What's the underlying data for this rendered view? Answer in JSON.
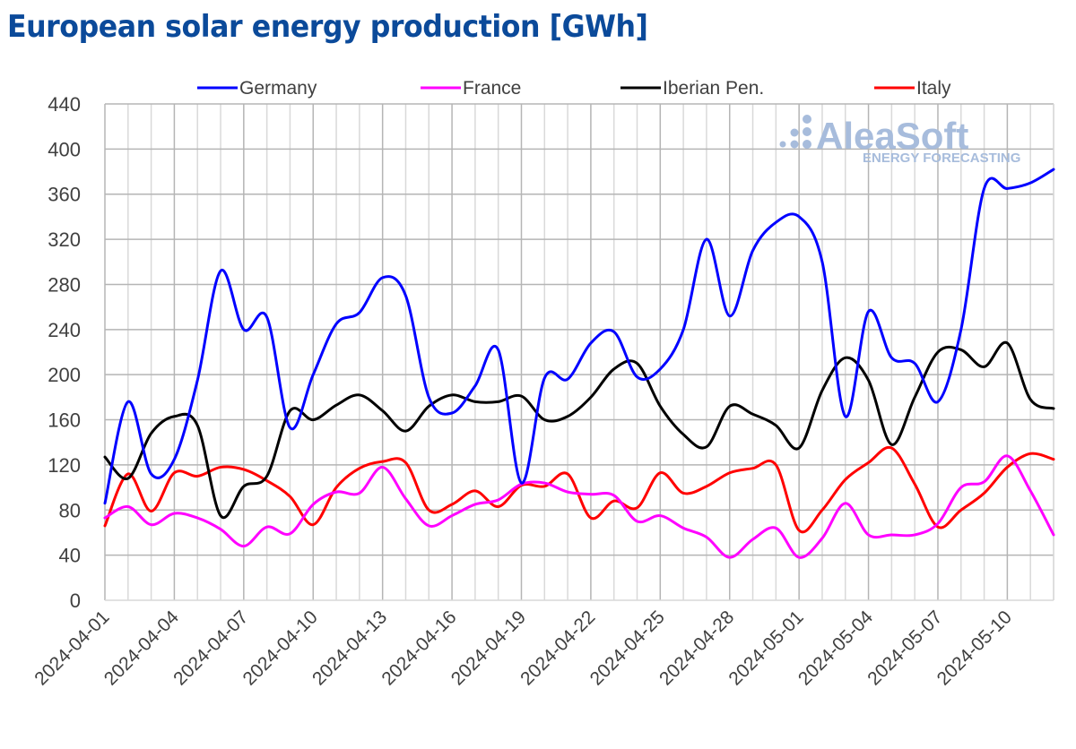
{
  "chart_data": {
    "type": "line",
    "title": "European solar energy production [GWh]",
    "xlabel": "",
    "ylabel": "",
    "ylim": [
      0,
      440
    ],
    "y_ticks": [
      "0",
      "40",
      "80",
      "120",
      "160",
      "200",
      "240",
      "280",
      "320",
      "360",
      "400",
      "440"
    ],
    "y_tick_values": [
      0,
      40,
      80,
      120,
      160,
      200,
      240,
      280,
      320,
      360,
      400,
      440
    ],
    "grid": true,
    "legend_position": "top",
    "x": [
      "2024-04-01",
      "2024-04-02",
      "2024-04-03",
      "2024-04-04",
      "2024-04-05",
      "2024-04-06",
      "2024-04-07",
      "2024-04-08",
      "2024-04-09",
      "2024-04-10",
      "2024-04-11",
      "2024-04-12",
      "2024-04-13",
      "2024-04-14",
      "2024-04-15",
      "2024-04-16",
      "2024-04-17",
      "2024-04-18",
      "2024-04-19",
      "2024-04-20",
      "2024-04-21",
      "2024-04-22",
      "2024-04-23",
      "2024-04-24",
      "2024-04-25",
      "2024-04-26",
      "2024-04-27",
      "2024-04-28",
      "2024-04-29",
      "2024-04-30",
      "2024-05-01",
      "2024-05-02",
      "2024-05-03",
      "2024-05-04",
      "2024-05-05",
      "2024-05-06",
      "2024-05-07",
      "2024-05-08",
      "2024-05-09",
      "2024-05-10",
      "2024-05-11",
      "2024-05-12"
    ],
    "x_tick_labels": [
      "2024-04-01",
      "2024-04-04",
      "2024-04-07",
      "2024-04-10",
      "2024-04-13",
      "2024-04-16",
      "2024-04-19",
      "2024-04-22",
      "2024-04-25",
      "2024-04-28",
      "2024-05-01",
      "2024-05-04",
      "2024-05-07",
      "2024-05-10"
    ],
    "series": [
      {
        "name": "Germany",
        "color": "#0000ff",
        "values": [
          86,
          176,
          112,
          125,
          195,
          292,
          240,
          251,
          153,
          200,
          245,
          255,
          286,
          270,
          180,
          166,
          190,
          222,
          104,
          197,
          196,
          228,
          238,
          198,
          205,
          240,
          320,
          252,
          310,
          335,
          340,
          300,
          163,
          256,
          215,
          210,
          176,
          240,
          365,
          365,
          370,
          382
        ]
      },
      {
        "name": "France",
        "color": "#ff00ff",
        "values": [
          73,
          83,
          67,
          77,
          73,
          63,
          48,
          65,
          59,
          85,
          96,
          95,
          118,
          90,
          66,
          75,
          85,
          89,
          103,
          104,
          96,
          94,
          93,
          70,
          75,
          64,
          56,
          38,
          54,
          64,
          38,
          55,
          86,
          58,
          58,
          58,
          68,
          100,
          105,
          128,
          97,
          58
        ]
      },
      {
        "name": "Iberian Pen.",
        "color": "#000000",
        "values": [
          127,
          108,
          148,
          163,
          155,
          75,
          101,
          110,
          168,
          160,
          173,
          182,
          168,
          150,
          172,
          182,
          176,
          176,
          181,
          160,
          163,
          180,
          205,
          210,
          172,
          147,
          136,
          172,
          165,
          155,
          135,
          186,
          215,
          195,
          138,
          180,
          220,
          222,
          207,
          228,
          178,
          170
        ]
      },
      {
        "name": "Italy",
        "color": "#ff0000",
        "values": [
          66,
          112,
          79,
          113,
          110,
          118,
          116,
          106,
          92,
          67,
          100,
          117,
          123,
          122,
          80,
          85,
          97,
          83,
          102,
          101,
          112,
          73,
          88,
          82,
          113,
          95,
          101,
          113,
          117,
          120,
          62,
          80,
          107,
          122,
          135,
          103,
          65,
          80,
          95,
          118,
          130,
          125
        ]
      }
    ]
  },
  "watermark": {
    "brand": "AleaSoft",
    "tagline": "ENERGY FORECASTING"
  }
}
